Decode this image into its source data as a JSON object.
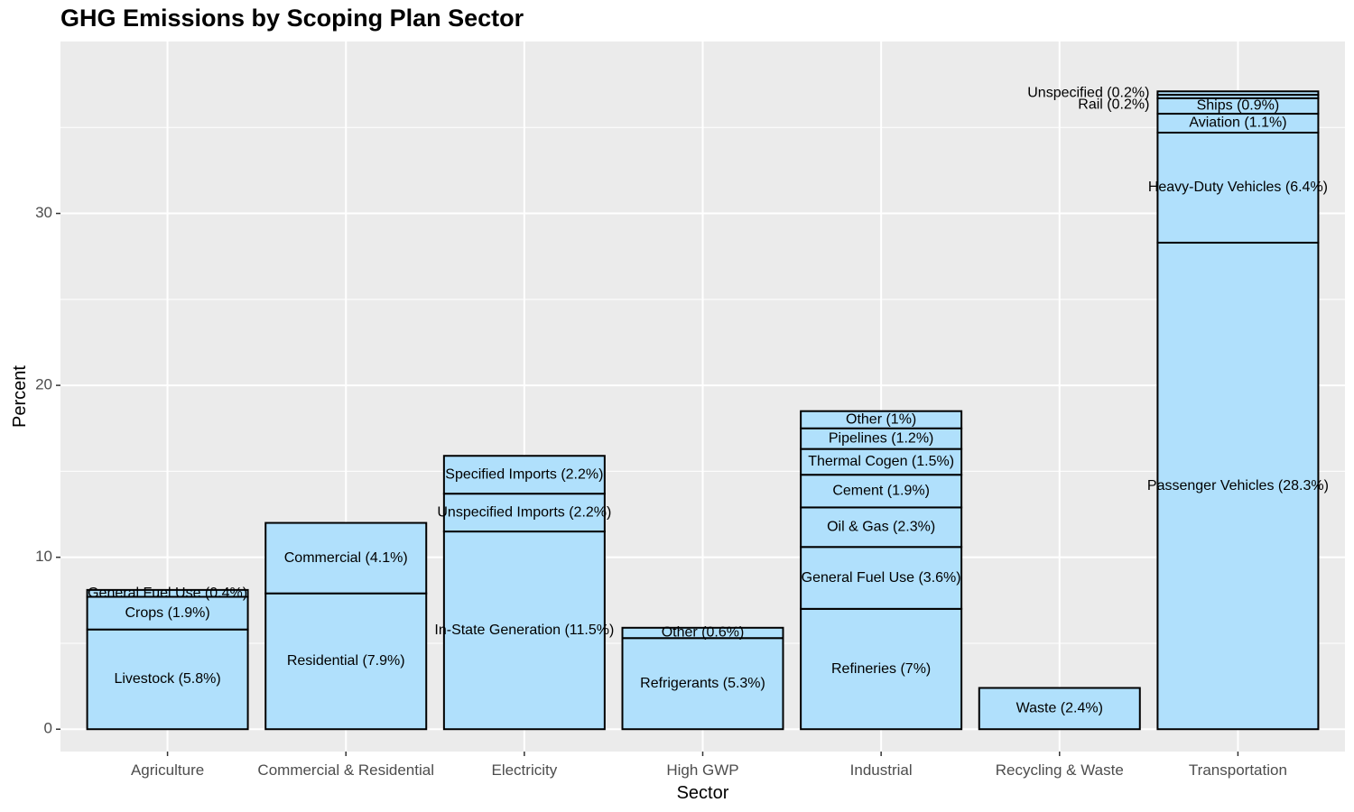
{
  "chart_data": {
    "type": "bar",
    "stacked": true,
    "title": "GHG Emissions by Scoping Plan Sector",
    "xlabel": "Sector",
    "ylabel": "Percent",
    "ylim": [
      -1.3,
      40.0
    ],
    "yticks": [
      0,
      10,
      20,
      30
    ],
    "yticklabels": [
      "0",
      "10",
      "20",
      "30"
    ],
    "bar_fill": "#b0e0fc",
    "bar_stroke": "#000000",
    "panel_bg": "#ebebeb",
    "grid_color": "#ffffff",
    "categories": [
      "Agriculture",
      "Commercial & Residential",
      "Electricity",
      "High GWP",
      "Industrial",
      "Recycling & Waste",
      "Transportation"
    ],
    "stacks": [
      {
        "sector": "Agriculture",
        "segments": [
          {
            "label": "Livestock (5.8%)",
            "value": 5.8
          },
          {
            "label": "Crops (1.9%)",
            "value": 1.9
          },
          {
            "label": "General Fuel Use (0.4%)",
            "value": 0.4
          }
        ]
      },
      {
        "sector": "Commercial & Residential",
        "segments": [
          {
            "label": "Residential (7.9%)",
            "value": 7.9
          },
          {
            "label": "Commercial (4.1%)",
            "value": 4.1
          }
        ]
      },
      {
        "sector": "Electricity",
        "segments": [
          {
            "label": "In-State Generation (11.5%)",
            "value": 11.5
          },
          {
            "label": "Unspecified Imports (2.2%)",
            "value": 2.2
          },
          {
            "label": "Specified Imports (2.2%)",
            "value": 2.2
          }
        ]
      },
      {
        "sector": "High GWP",
        "segments": [
          {
            "label": "Refrigerants (5.3%)",
            "value": 5.3
          },
          {
            "label": "Other (0.6%)",
            "value": 0.6
          }
        ]
      },
      {
        "sector": "Industrial",
        "segments": [
          {
            "label": "Refineries (7%)",
            "value": 7.0
          },
          {
            "label": "General Fuel Use (3.6%)",
            "value": 3.6
          },
          {
            "label": "Oil & Gas (2.3%)",
            "value": 2.3
          },
          {
            "label": "Cement (1.9%)",
            "value": 1.9
          },
          {
            "label": "Thermal Cogen (1.5%)",
            "value": 1.5
          },
          {
            "label": "Pipelines (1.2%)",
            "value": 1.2
          },
          {
            "label": "Other (1%)",
            "value": 1.0
          }
        ]
      },
      {
        "sector": "Recycling & Waste",
        "segments": [
          {
            "label": "Waste (2.4%)",
            "value": 2.4
          }
        ]
      },
      {
        "sector": "Transportation",
        "segments": [
          {
            "label": "Passenger Vehicles (28.3%)",
            "value": 28.3
          },
          {
            "label": "Heavy-Duty Vehicles (6.4%)",
            "value": 6.4
          },
          {
            "label": "Aviation (1.1%)",
            "value": 1.1
          },
          {
            "label": "Ships (0.9%)",
            "value": 0.9
          },
          {
            "label": "Rail (0.2%)",
            "value": 0.2,
            "label_side": "left"
          },
          {
            "label": "Unspecified (0.2%)",
            "value": 0.2,
            "label_side": "left"
          }
        ]
      }
    ]
  }
}
